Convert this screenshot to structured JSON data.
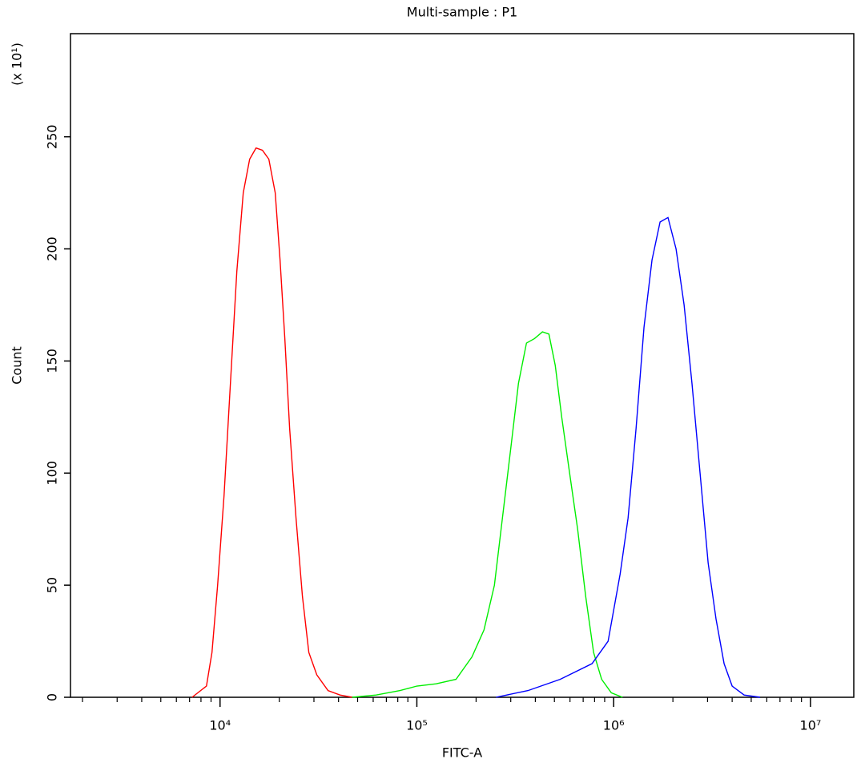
{
  "chart_data": {
    "type": "line",
    "title": "Multi-sample : P1",
    "xlabel": "FITC-A",
    "ylabel": "Count",
    "y_multiplier": "(x 10¹)",
    "xscale": "log",
    "xlim": [
      1738,
      16600000
    ],
    "xticks": [
      {
        "value": 10000,
        "label": "10⁴"
      },
      {
        "value": 100000,
        "label": "10⁵"
      },
      {
        "value": 1000000,
        "label": "10⁶"
      },
      {
        "value": 10000000,
        "label": "10⁷"
      }
    ],
    "x_minor_ticks": [
      2000,
      3000,
      4000,
      5000,
      6000,
      7000,
      8000,
      9000,
      20000,
      30000,
      40000,
      50000,
      60000,
      70000,
      80000,
      90000,
      200000,
      300000,
      400000,
      500000,
      600000,
      700000,
      800000,
      900000,
      2000000,
      3000000,
      4000000,
      5000000,
      6000000,
      7000000,
      8000000,
      9000000
    ],
    "ylim": [
      0,
      296
    ],
    "yticks": [
      0,
      50,
      100,
      150,
      200,
      250
    ],
    "series": [
      {
        "color": "#ff0000",
        "x": [
          7210,
          8530,
          9100,
          9720,
          10480,
          11290,
          12170,
          13120,
          14140,
          15240,
          16420,
          17700,
          19070,
          20180,
          21340,
          22570,
          24320,
          26220,
          28260,
          31020,
          35380,
          40700,
          46860
        ],
        "values": [
          0,
          5,
          20,
          50,
          90,
          140,
          190,
          225,
          240,
          245,
          244,
          240,
          225,
          195,
          160,
          120,
          80,
          45,
          20,
          10,
          3,
          1,
          0
        ]
      },
      {
        "color": "#00ee00",
        "x": [
          46860,
          62090,
          82220,
          100000,
          125300,
          158100,
          190500,
          219300,
          247800,
          272200,
          299100,
          328300,
          360600,
          396200,
          434700,
          468800,
          505000,
          544500,
          597200,
          656000,
          720900,
          790700,
          868900,
          972700,
          1109000
        ],
        "values": [
          0,
          1,
          3,
          5,
          6,
          8,
          18,
          30,
          50,
          80,
          110,
          140,
          158,
          160,
          163,
          162,
          148,
          125,
          100,
          75,
          45,
          20,
          8,
          2,
          0
        ]
      },
      {
        "color": "#0000ff",
        "x": [
          252700,
          367300,
          534600,
          776600,
          937000,
          1079000,
          1184000,
          1300000,
          1426000,
          1566000,
          1721000,
          1888000,
          2075000,
          2280000,
          2500000,
          2748000,
          3020000,
          3311000,
          3640000,
          4000000,
          4603000,
          5546000
        ],
        "values": [
          0,
          3,
          8,
          15,
          25,
          55,
          80,
          120,
          165,
          195,
          212,
          214,
          200,
          175,
          140,
          100,
          60,
          35,
          15,
          5,
          1,
          0
        ]
      }
    ]
  }
}
